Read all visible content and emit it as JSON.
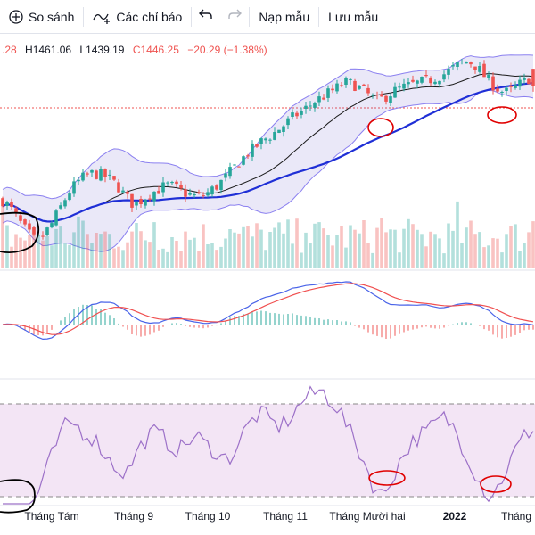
{
  "toolbar": {
    "compare_label": "So sánh",
    "indicators_label": "Các chỉ báo",
    "templates_label": "Nạp mẫu",
    "save_label": "Lưu mẫu",
    "undo_icon": "undo-icon",
    "redo_icon": "redo-icon",
    "compare_icon": "plus-circle-icon",
    "indicators_icon": "indicator-wave-icon"
  },
  "legend": {
    "open_fragment": ".28",
    "high": "H1461.06",
    "low": "L1439.19",
    "close": "C1446.25",
    "change": "−20.29 (−1.38%)"
  },
  "colors": {
    "up": "#26a69a",
    "down": "#ef5350",
    "bb_fill": "#6a5acd",
    "bb_line": "#8b80f0",
    "ma_fast": "#1a1a1a",
    "ma_slow": "#1f2fd6",
    "macd_line": "#4a64e8",
    "signal_line": "#f05050",
    "rsi_line": "#9c70c8",
    "rsi_band": "#f3e5f5",
    "annotation_red": "#e00000",
    "annotation_black": "#000000"
  },
  "chart_data": {
    "type": "candlestick",
    "x_axis_labels": [
      "Tháng Tám",
      "Tháng 9",
      "Tháng 10",
      "Tháng 11",
      "Tháng Mười hai",
      "2022",
      "Tháng"
    ],
    "last_bar": {
      "high": 1461.06,
      "low": 1439.19,
      "close": 1446.25,
      "change": -20.29,
      "change_pct": -1.38
    },
    "price_path": [
      1310,
      1300,
      1285,
      1272,
      1262,
      1268,
      1282,
      1300,
      1318,
      1330,
      1338,
      1342,
      1340,
      1336,
      1328,
      1315,
      1305,
      1310,
      1318,
      1322,
      1328,
      1326,
      1320,
      1316,
      1314,
      1318,
      1325,
      1334,
      1345,
      1356,
      1366,
      1374,
      1382,
      1388,
      1396,
      1404,
      1412,
      1418,
      1426,
      1432,
      1438,
      1444,
      1450,
      1448,
      1442,
      1434,
      1428,
      1434,
      1440,
      1444,
      1447,
      1450,
      1452,
      1456,
      1460,
      1466,
      1472,
      1476,
      1470,
      1458,
      1448,
      1440,
      1438,
      1446,
      1452,
      1458
    ],
    "rsi_path": [
      26,
      22,
      20,
      24,
      32,
      42,
      52,
      60,
      62,
      58,
      56,
      52,
      46,
      42,
      40,
      48,
      54,
      58,
      56,
      52,
      50,
      54,
      56,
      52,
      50,
      46,
      48,
      56,
      62,
      66,
      64,
      60,
      62,
      66,
      72,
      74,
      76,
      72,
      68,
      60,
      52,
      44,
      34,
      30,
      38,
      46,
      52,
      56,
      58,
      62,
      64,
      60,
      52,
      44,
      36,
      30,
      34,
      42,
      50,
      56,
      60
    ],
    "rsi_bands": [
      30,
      70
    ]
  }
}
